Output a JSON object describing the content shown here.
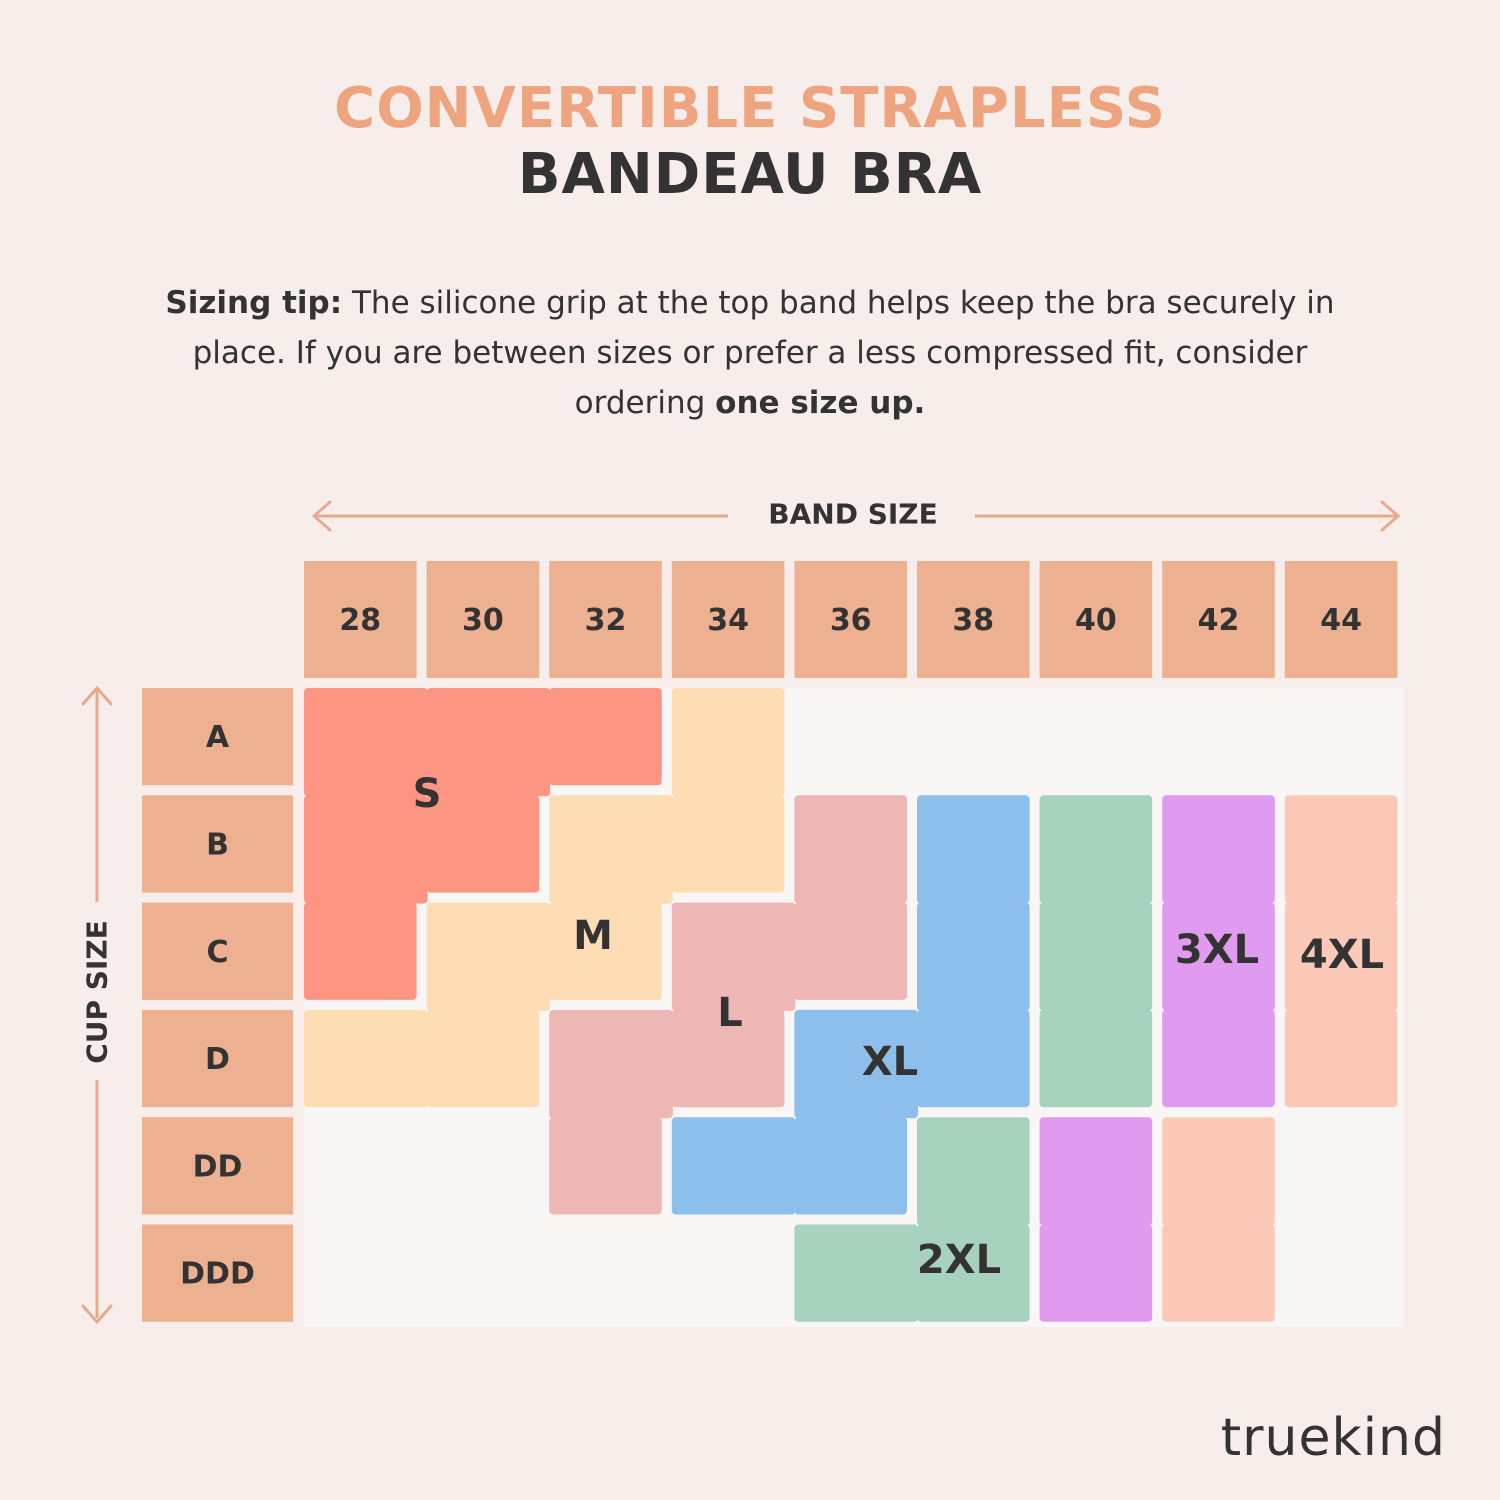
{
  "title_line1": "CONVERTIBLE STRAPLESS",
  "title_line2": "BANDEAU BRA",
  "tip": {
    "label": "Sizing tip:",
    "text": " The silicone grip at the top band helps keep the bra securely in place. If you are between sizes or prefer a less compressed fit, consider ordering ",
    "emphasis": "one size up."
  },
  "brand": "truekind",
  "colors": {
    "title_accent": "#eea57f",
    "header_cell": "#edb192",
    "arrow": "#e7ab8c",
    "grid_bg": "#f8f7f6",
    "S": "#fe9583",
    "M": "#fedcb4",
    "L": "#efb6b6",
    "XL": "#8dbfed",
    "2XL": "#a7d2bd",
    "3XL": "#e09bf1",
    "4XL": "#fcc8b8"
  },
  "chart_data": {
    "type": "table",
    "xlabel": "BAND SIZE",
    "ylabel": "CUP SIZE",
    "band_sizes": [
      "28",
      "30",
      "32",
      "34",
      "36",
      "38",
      "40",
      "42",
      "44"
    ],
    "cup_sizes": [
      "A",
      "B",
      "C",
      "D",
      "DD",
      "DDD"
    ],
    "sizes": [
      {
        "name": "S",
        "cells": [
          [
            "A",
            "28"
          ],
          [
            "A",
            "30"
          ],
          [
            "A",
            "32"
          ],
          [
            "B",
            "28"
          ],
          [
            "B",
            "30"
          ],
          [
            "C",
            "28"
          ]
        ]
      },
      {
        "name": "M",
        "cells": [
          [
            "A",
            "34"
          ],
          [
            "B",
            "32"
          ],
          [
            "B",
            "34"
          ],
          [
            "C",
            "30"
          ],
          [
            "C",
            "32"
          ],
          [
            "D",
            "28"
          ],
          [
            "D",
            "30"
          ]
        ]
      },
      {
        "name": "L",
        "cells": [
          [
            "B",
            "36"
          ],
          [
            "C",
            "34"
          ],
          [
            "C",
            "36"
          ],
          [
            "D",
            "32"
          ],
          [
            "D",
            "34"
          ],
          [
            "DD",
            "32"
          ]
        ]
      },
      {
        "name": "XL",
        "cells": [
          [
            "B",
            "38"
          ],
          [
            "C",
            "38"
          ],
          [
            "D",
            "36"
          ],
          [
            "D",
            "38"
          ],
          [
            "DD",
            "34"
          ],
          [
            "DD",
            "36"
          ]
        ]
      },
      {
        "name": "2XL",
        "cells": [
          [
            "B",
            "40"
          ],
          [
            "C",
            "40"
          ],
          [
            "D",
            "40"
          ],
          [
            "DD",
            "38"
          ],
          [
            "DDD",
            "36"
          ],
          [
            "DDD",
            "38"
          ]
        ]
      },
      {
        "name": "3XL",
        "cells": [
          [
            "B",
            "42"
          ],
          [
            "C",
            "42"
          ],
          [
            "D",
            "42"
          ],
          [
            "DD",
            "40"
          ],
          [
            "DDD",
            "40"
          ]
        ]
      },
      {
        "name": "4XL",
        "cells": [
          [
            "B",
            "44"
          ],
          [
            "C",
            "44"
          ],
          [
            "D",
            "44"
          ],
          [
            "DD",
            "42"
          ],
          [
            "DDD",
            "42"
          ]
        ]
      }
    ]
  }
}
